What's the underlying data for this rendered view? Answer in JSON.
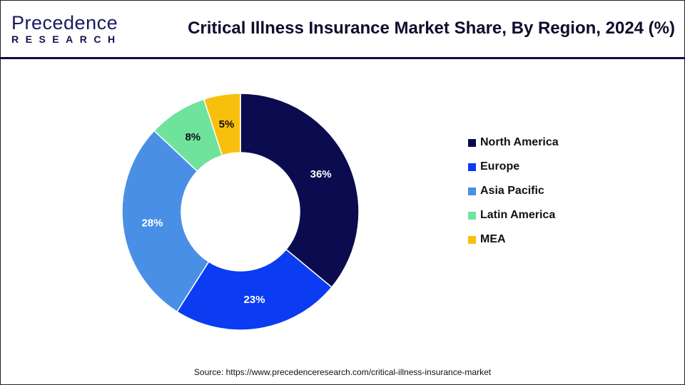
{
  "header": {
    "logo_line1": "Precedence",
    "logo_line2": "RESEARCH",
    "title": "Critical Illness Insurance Market Share, By Region, 2024 (%)"
  },
  "chart_data": {
    "type": "pie",
    "style": "donut",
    "title": "Critical Illness Insurance Market Share, By Region, 2024 (%)",
    "categories": [
      "North America",
      "Europe",
      "Asia Pacific",
      "Latin America",
      "MEA"
    ],
    "values": [
      36,
      23,
      28,
      8,
      5
    ],
    "labels": [
      "36%",
      "23%",
      "28%",
      "8%",
      "5%"
    ],
    "colors": [
      "#0b0b4f",
      "#0b3cf2",
      "#4a8fe6",
      "#6fe39c",
      "#f8c00c"
    ],
    "legend_position": "right"
  },
  "source": "Source: https://www.precedenceresearch.com/critical-illness-insurance-market"
}
